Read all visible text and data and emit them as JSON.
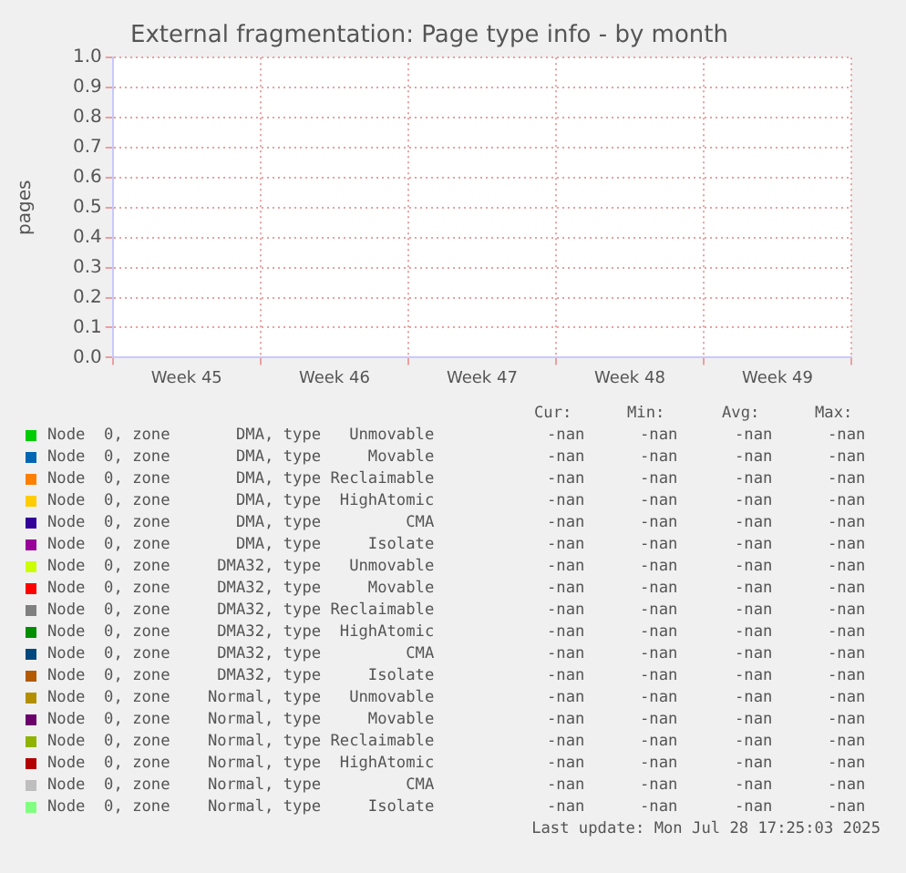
{
  "chart_data": {
    "type": "line",
    "title": "External fragmentation: Page type info - by month",
    "ylabel": "pages",
    "categories": [
      "Week 45",
      "Week 46",
      "Week 47",
      "Week 48",
      "Week 49"
    ],
    "ylim": [
      0,
      1
    ],
    "yticks": [
      {
        "value": 0,
        "label": "0.0"
      },
      {
        "value": 0.1,
        "label": "0.1"
      },
      {
        "value": 0.2,
        "label": "0.2"
      },
      {
        "value": 0.3,
        "label": "0.3"
      },
      {
        "value": 0.4,
        "label": "0.4"
      },
      {
        "value": 0.5,
        "label": "0.5"
      },
      {
        "value": 0.6,
        "label": "0.6"
      },
      {
        "value": 0.7,
        "label": "0.7"
      },
      {
        "value": 0.8,
        "label": "0.8"
      },
      {
        "value": 0.9,
        "label": "0.9"
      },
      {
        "value": 1,
        "label": "1.0"
      }
    ],
    "grid": true,
    "legend": "bottom",
    "series": [
      {
        "name": "Node  0, zone       DMA, type   Unmovable",
        "color": "#00cc00",
        "values": [
          null,
          null,
          null,
          null,
          null
        ]
      },
      {
        "name": "Node  0, zone       DMA, type     Movable",
        "color": "#0066b3",
        "values": [
          null,
          null,
          null,
          null,
          null
        ]
      },
      {
        "name": "Node  0, zone       DMA, type Reclaimable",
        "color": "#ff8000",
        "values": [
          null,
          null,
          null,
          null,
          null
        ]
      },
      {
        "name": "Node  0, zone       DMA, type  HighAtomic",
        "color": "#ffcc00",
        "values": [
          null,
          null,
          null,
          null,
          null
        ]
      },
      {
        "name": "Node  0, zone       DMA, type         CMA",
        "color": "#330099",
        "values": [
          null,
          null,
          null,
          null,
          null
        ]
      },
      {
        "name": "Node  0, zone       DMA, type     Isolate",
        "color": "#990099",
        "values": [
          null,
          null,
          null,
          null,
          null
        ]
      },
      {
        "name": "Node  0, zone     DMA32, type   Unmovable",
        "color": "#ccff00",
        "values": [
          null,
          null,
          null,
          null,
          null
        ]
      },
      {
        "name": "Node  0, zone     DMA32, type     Movable",
        "color": "#ff0000",
        "values": [
          null,
          null,
          null,
          null,
          null
        ]
      },
      {
        "name": "Node  0, zone     DMA32, type Reclaimable",
        "color": "#808080",
        "values": [
          null,
          null,
          null,
          null,
          null
        ]
      },
      {
        "name": "Node  0, zone     DMA32, type  HighAtomic",
        "color": "#008f00",
        "values": [
          null,
          null,
          null,
          null,
          null
        ]
      },
      {
        "name": "Node  0, zone     DMA32, type         CMA",
        "color": "#00487d",
        "values": [
          null,
          null,
          null,
          null,
          null
        ]
      },
      {
        "name": "Node  0, zone     DMA32, type     Isolate",
        "color": "#b35a00",
        "values": [
          null,
          null,
          null,
          null,
          null
        ]
      },
      {
        "name": "Node  0, zone    Normal, type   Unmovable",
        "color": "#b38f00",
        "values": [
          null,
          null,
          null,
          null,
          null
        ]
      },
      {
        "name": "Node  0, zone    Normal, type     Movable",
        "color": "#6b006b",
        "values": [
          null,
          null,
          null,
          null,
          null
        ]
      },
      {
        "name": "Node  0, zone    Normal, type Reclaimable",
        "color": "#8fb300",
        "values": [
          null,
          null,
          null,
          null,
          null
        ]
      },
      {
        "name": "Node  0, zone    Normal, type  HighAtomic",
        "color": "#b30000",
        "values": [
          null,
          null,
          null,
          null,
          null
        ]
      },
      {
        "name": "Node  0, zone    Normal, type         CMA",
        "color": "#bebebe",
        "values": [
          null,
          null,
          null,
          null,
          null
        ]
      },
      {
        "name": "Node  0, zone    Normal, type     Isolate",
        "color": "#80ff80",
        "values": [
          null,
          null,
          null,
          null,
          null
        ]
      }
    ],
    "annotations": [
      "Cur:",
      "Min:",
      "Avg:",
      "Max:",
      "-nan",
      "-nan",
      "-nan",
      "-nan",
      "-nan",
      "-nan",
      "-nan",
      "-nan",
      "-nan",
      "-nan",
      "-nan",
      "-nan",
      "-nan",
      "-nan",
      "-nan",
      "-nan",
      "-nan",
      "-nan",
      "-nan",
      "-nan",
      "-nan",
      "-nan",
      "-nan",
      "-nan",
      "-nan",
      "-nan",
      "-nan",
      "-nan",
      "-nan",
      "-nan",
      "-nan",
      "-nan",
      "-nan",
      "-nan",
      "-nan",
      "-nan",
      "-nan",
      "-nan",
      "-nan",
      "-nan",
      "-nan",
      "-nan",
      "-nan",
      "-nan",
      "-nan",
      "-nan",
      "-nan",
      "-nan",
      "-nan",
      "-nan",
      "-nan",
      "-nan",
      "-nan",
      "-nan",
      "-nan",
      "-nan",
      "-nan",
      "-nan",
      "-nan",
      "-nan",
      "-nan",
      "-nan",
      "-nan",
      "-nan",
      "-nan",
      "-nan",
      "-nan",
      "-nan",
      "-nan",
      "-nan",
      "-nan",
      "-nan",
      "Last update: Mon Jul 28 17:25:03 2025"
    ]
  }
}
